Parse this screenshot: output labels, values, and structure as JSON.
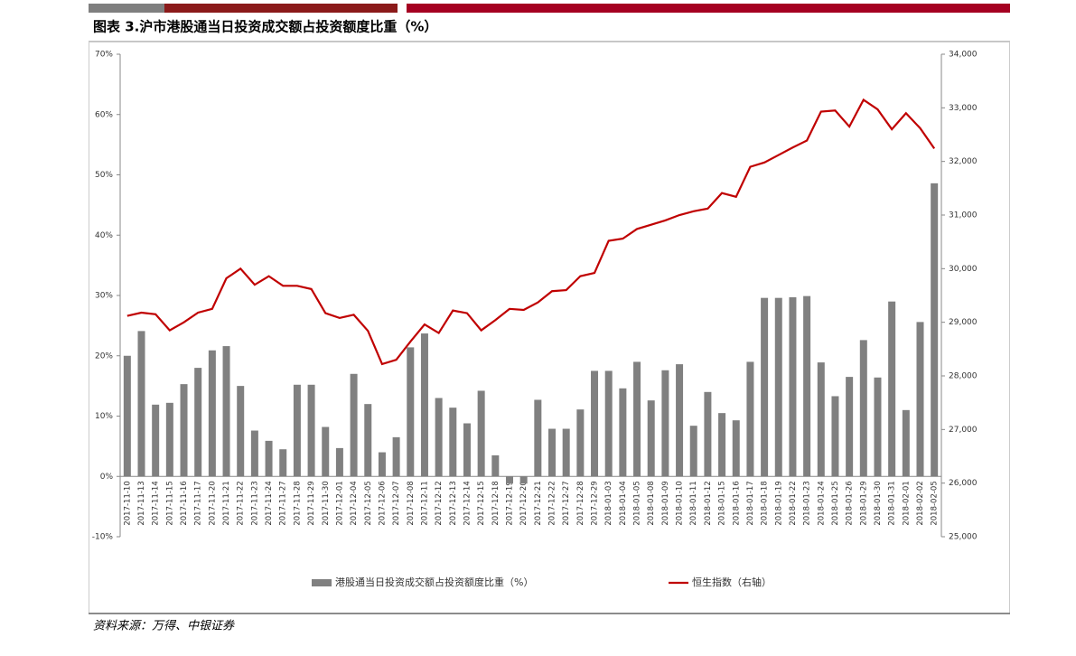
{
  "chart_data": {
    "type": "bar-line",
    "title": "图表 3.沪市港股通当日投资成交额占投资额度比重（%）",
    "source": "资料来源：万得、中银证券",
    "categories": [
      "2017-11-10",
      "2017-11-13",
      "2017-11-14",
      "2017-11-15",
      "2017-11-16",
      "2017-11-17",
      "2017-11-20",
      "2017-11-21",
      "2017-11-22",
      "2017-11-23",
      "2017-11-24",
      "2017-11-27",
      "2017-11-28",
      "2017-11-29",
      "2017-11-30",
      "2017-12-01",
      "2017-12-04",
      "2017-12-05",
      "2017-12-06",
      "2017-12-07",
      "2017-12-08",
      "2017-12-11",
      "2017-12-12",
      "2017-12-13",
      "2017-12-14",
      "2017-12-15",
      "2017-12-18",
      "2017-12-19",
      "2017-12-20",
      "2017-12-21",
      "2017-12-22",
      "2017-12-27",
      "2017-12-28",
      "2017-12-29",
      "2018-01-03",
      "2018-01-04",
      "2018-01-05",
      "2018-01-08",
      "2018-01-09",
      "2018-01-10",
      "2018-01-11",
      "2018-01-12",
      "2018-01-15",
      "2018-01-16",
      "2018-01-17",
      "2018-01-18",
      "2018-01-19",
      "2018-01-22",
      "2018-01-23",
      "2018-01-24",
      "2018-01-25",
      "2018-01-26",
      "2018-01-29",
      "2018-01-30",
      "2018-01-31",
      "2018-02-01",
      "2018-02-02",
      "2018-02-05"
    ],
    "series": [
      {
        "name": "港股通当日投资成交额占投资额度比重（%）",
        "color": "#808080",
        "type": "bar",
        "axis": "y",
        "values": [
          20,
          24.1,
          11.9,
          12.2,
          15.3,
          18,
          20.9,
          21.6,
          15,
          7.6,
          5.9,
          4.5,
          15.2,
          15.2,
          8.2,
          4.7,
          17,
          12,
          4,
          6.5,
          21.4,
          23.7,
          13,
          11.4,
          8.8,
          14.2,
          3.5,
          -1.2,
          -1.2,
          12.7,
          7.9,
          7.9,
          11.1,
          17.5,
          17.5,
          14.6,
          19,
          12.6,
          17.6,
          18.6,
          8.4,
          14,
          10.5,
          9.3,
          19,
          29.6,
          29.6,
          29.7,
          29.9,
          18.9,
          13.3,
          16.5,
          22.6,
          16.4,
          29,
          11,
          25.6,
          48.6
        ]
      },
      {
        "name": "恒生指数（右轴）",
        "color": "#c00000",
        "type": "line",
        "axis": "y2",
        "values": [
          29120,
          29180,
          29150,
          28850,
          29000,
          29180,
          29250,
          29820,
          30000,
          29700,
          29860,
          29680,
          29680,
          29620,
          29170,
          29080,
          29140,
          28840,
          28220,
          28300,
          28640,
          28960,
          28800,
          29220,
          29170,
          28850,
          29040,
          29250,
          29230,
          29370,
          29580,
          29600,
          29860,
          29920,
          30520,
          30560,
          30740,
          30820,
          30900,
          31000,
          31070,
          31120,
          31410,
          31340,
          31900,
          31980,
          32120,
          32260,
          32390,
          32930,
          32950,
          32650,
          33150,
          32970,
          32600,
          32900,
          32620,
          32240
        ]
      }
    ],
    "ylim": [
      -10,
      70
    ],
    "yticks": [
      {
        "value": -10,
        "label": "-10%"
      },
      {
        "value": 0,
        "label": "0%"
      },
      {
        "value": 10,
        "label": "10%"
      },
      {
        "value": 20,
        "label": "20%"
      },
      {
        "value": 30,
        "label": "30%"
      },
      {
        "value": 40,
        "label": "40%"
      },
      {
        "value": 50,
        "label": "50%"
      },
      {
        "value": 60,
        "label": "60%"
      },
      {
        "value": 70,
        "label": "70%"
      }
    ],
    "y2lim": [
      25000,
      34000
    ],
    "y2ticks": [
      {
        "value": 25000,
        "label": "25,000"
      },
      {
        "value": 26000,
        "label": "26,000"
      },
      {
        "value": 27000,
        "label": "27,000"
      },
      {
        "value": 28000,
        "label": "28,000"
      },
      {
        "value": 29000,
        "label": "29,000"
      },
      {
        "value": 30000,
        "label": "30,000"
      },
      {
        "value": 31000,
        "label": "31,000"
      },
      {
        "value": 32000,
        "label": "32,000"
      },
      {
        "value": 33000,
        "label": "33,000"
      },
      {
        "value": 34000,
        "label": "34,000"
      }
    ]
  }
}
